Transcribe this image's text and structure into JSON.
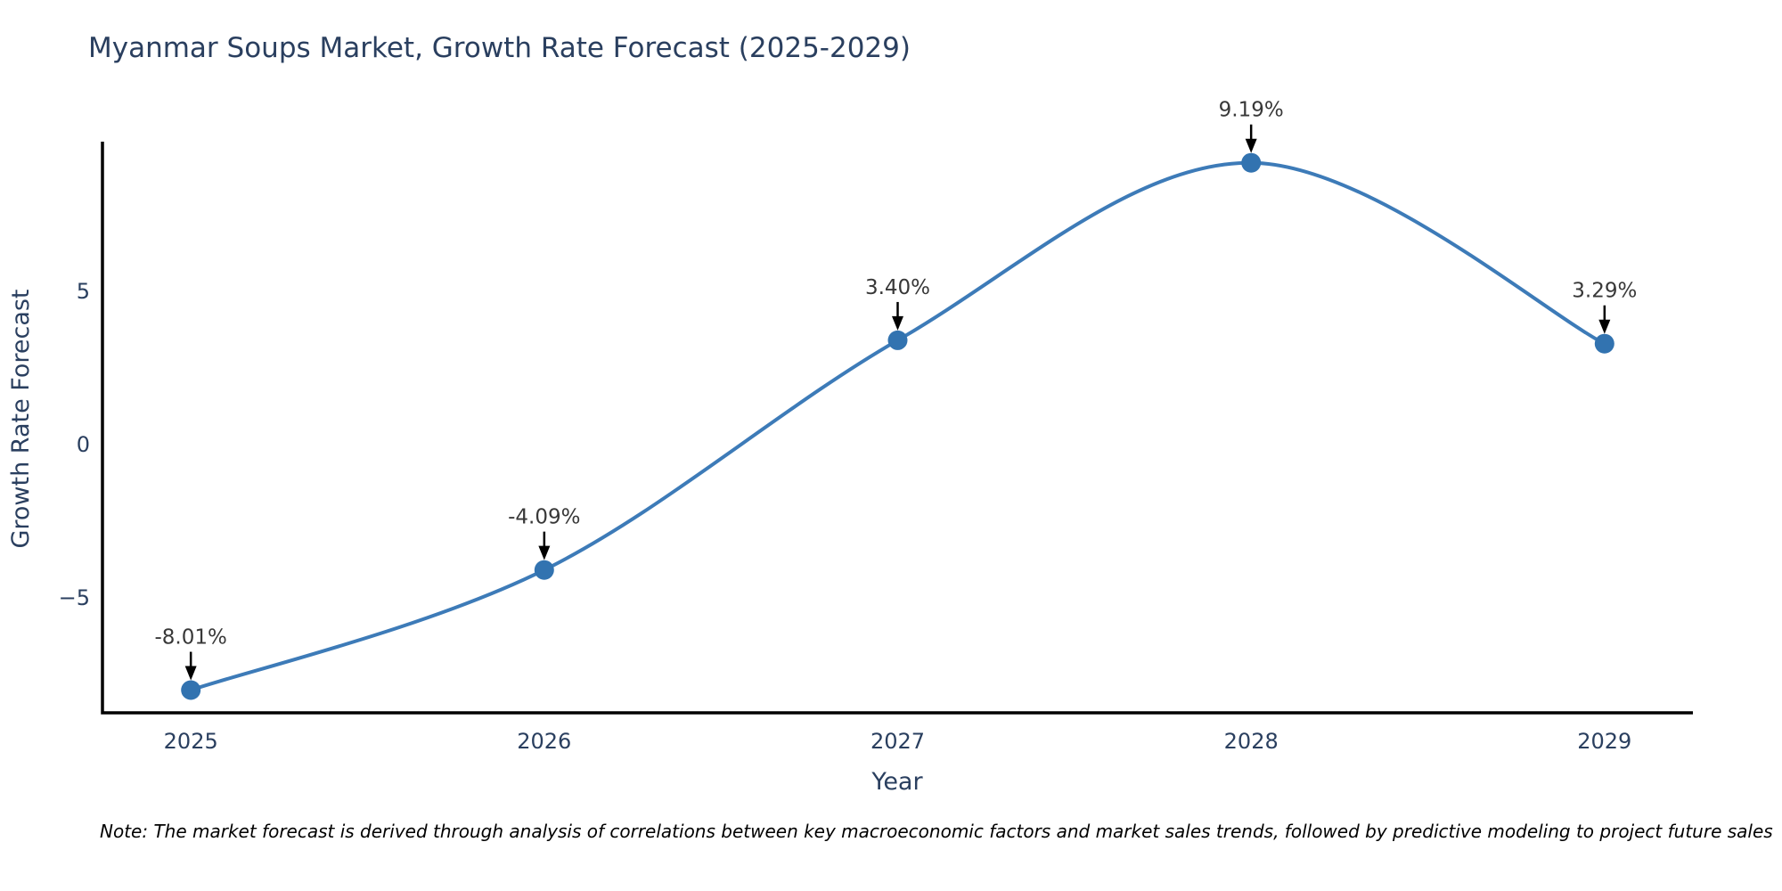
{
  "title": "Myanmar Soups Market, Growth Rate Forecast (2025-2029)",
  "note": "Note: The market forecast is derived through analysis of correlations between key macroeconomic factors and market sales trends, followed by predictive modeling to project future sales",
  "chart_data": {
    "type": "line",
    "title": "Myanmar Soups Market, Growth Rate Forecast (2025-2029)",
    "xlabel": "Year",
    "ylabel": "Growth Rate Forecast",
    "x": [
      2025,
      2026,
      2027,
      2028,
      2029
    ],
    "series": [
      {
        "name": "Growth Rate Forecast",
        "values": [
          -8.01,
          -4.09,
          3.4,
          9.19,
          3.29
        ]
      }
    ],
    "point_labels": [
      "-8.01%",
      "-4.09%",
      "3.40%",
      "9.19%",
      "3.29%"
    ],
    "x_tick_labels": [
      "2025",
      "2026",
      "2027",
      "2028",
      "2029"
    ],
    "y_ticks": [
      {
        "value": 5,
        "label": "5"
      },
      {
        "value": 0,
        "label": "0"
      },
      {
        "value": -5,
        "label": "−5"
      }
    ],
    "xlim": [
      2024.75,
      2029.25
    ],
    "ylim": [
      -8.75,
      9.85
    ],
    "grid": false,
    "legend": "none",
    "line_shape": "spline",
    "colors": {
      "line": "#3d7bb8",
      "marker": "#3273b0",
      "axis": "#000000",
      "annotation_arrow": "#000000",
      "annotation_text": "#383838",
      "tick_text": "#2a3f5f",
      "title_text": "#2a3f5f"
    }
  }
}
